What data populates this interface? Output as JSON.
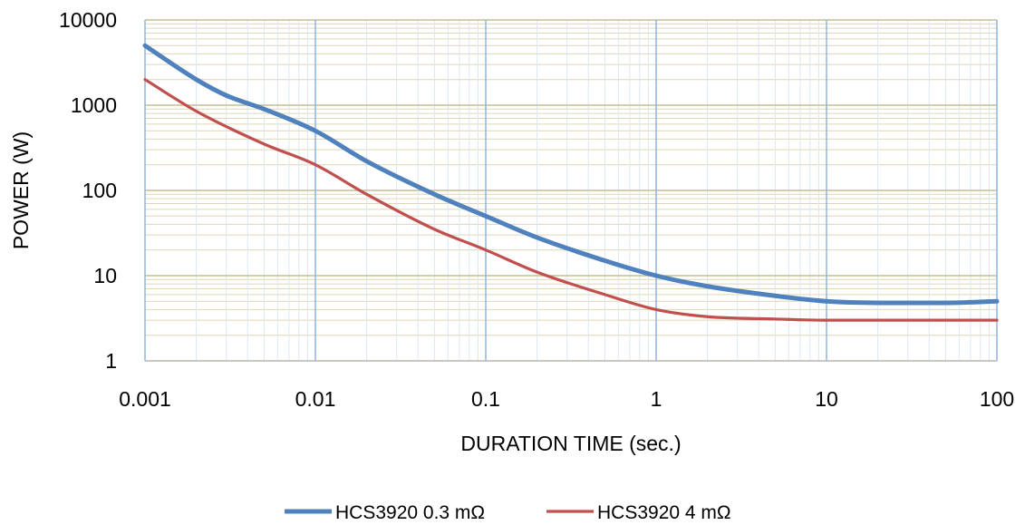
{
  "chart_data": {
    "type": "line",
    "xscale": "log",
    "yscale": "log",
    "xlim": [
      0.001,
      100
    ],
    "ylim": [
      1,
      10000
    ],
    "xlabel": "DURATION TIME (sec.)",
    "ylabel": "POWER (W)",
    "x_ticks": [
      "0.001",
      "0.01",
      "0.1",
      "1",
      "10",
      "100"
    ],
    "y_ticks": [
      "1",
      "10",
      "100",
      "1000",
      "10000"
    ],
    "grid": true,
    "legend_position": "bottom",
    "series": [
      {
        "name": "HCS3920 0.3 mΩ",
        "color": "#4f81bd",
        "points": [
          [
            0.001,
            5000
          ],
          [
            0.002,
            2000
          ],
          [
            0.003,
            1300
          ],
          [
            0.005,
            900
          ],
          [
            0.01,
            500
          ],
          [
            0.02,
            220
          ],
          [
            0.05,
            90
          ],
          [
            0.1,
            50
          ],
          [
            0.2,
            28
          ],
          [
            0.5,
            15
          ],
          [
            1,
            10
          ],
          [
            2,
            7.5
          ],
          [
            5,
            5.8
          ],
          [
            10,
            5
          ],
          [
            20,
            4.8
          ],
          [
            50,
            4.8
          ],
          [
            100,
            5
          ]
        ]
      },
      {
        "name": "HCS3920 4 mΩ",
        "color": "#c0504d",
        "points": [
          [
            0.001,
            2000
          ],
          [
            0.002,
            850
          ],
          [
            0.005,
            350
          ],
          [
            0.01,
            200
          ],
          [
            0.02,
            90
          ],
          [
            0.05,
            35
          ],
          [
            0.1,
            20
          ],
          [
            0.2,
            11
          ],
          [
            0.5,
            6
          ],
          [
            1,
            4
          ],
          [
            2,
            3.3
          ],
          [
            5,
            3.1
          ],
          [
            10,
            3
          ],
          [
            20,
            3
          ],
          [
            50,
            3
          ],
          [
            100,
            3
          ]
        ]
      }
    ]
  }
}
